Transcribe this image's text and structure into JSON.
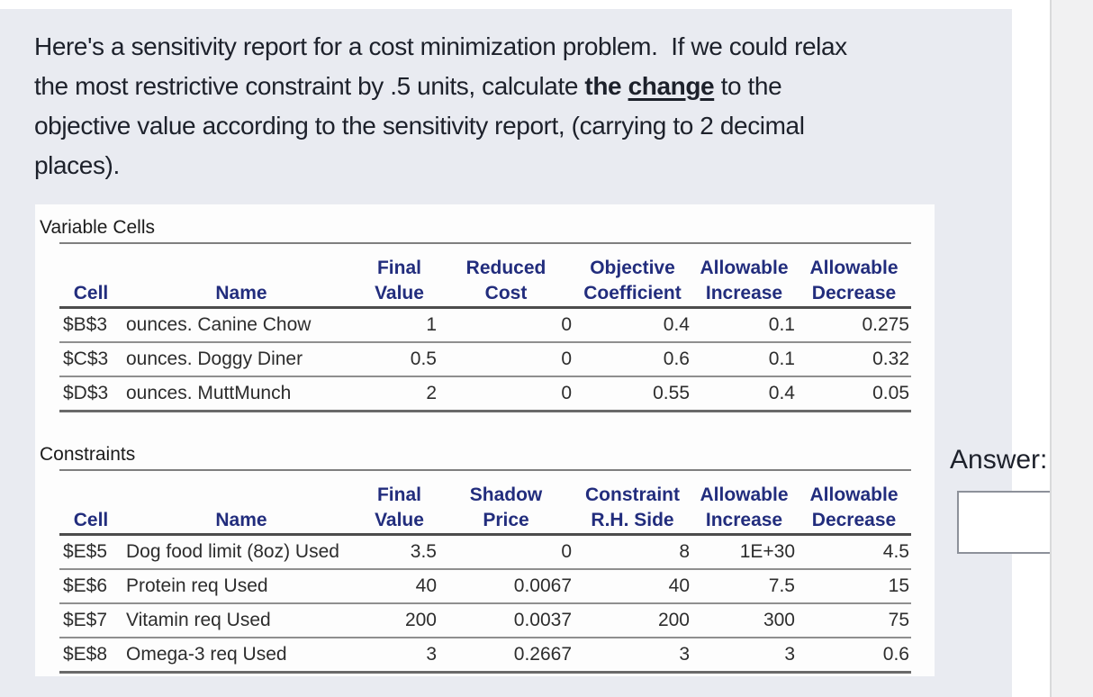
{
  "colors": {
    "panel": "#e9ebf1",
    "card": "#fdfdfd",
    "gutter": "#f1f1f2",
    "gutterline": "#d9dadb",
    "navy": "#222d7d",
    "ink": "#1d212b",
    "tableink": "#2d2d2d",
    "rule": "#7f7f7f",
    "ruledark": "#4c4c4c",
    "rulerow": "#8f8f8f",
    "rulebottom": "#6a6a6a",
    "inputborder": "#8d919a"
  },
  "question": {
    "lines": [
      {
        "segments": [
          {
            "t": "Here's a sensitivity report for a cost minimization problem.  If we could relax"
          }
        ]
      },
      {
        "segments": [
          {
            "t": "the most restrictive constraint by .5 units, calculate "
          },
          {
            "t": "the ",
            "b": true
          },
          {
            "t": "change",
            "b": true,
            "u": true
          },
          {
            "t": " to the"
          }
        ]
      },
      {
        "segments": [
          {
            "t": "objective value according to the sensitivity report, (carrying to 2 decimal"
          }
        ]
      },
      {
        "segments": [
          {
            "t": "places)."
          }
        ]
      }
    ]
  },
  "report": {
    "variable_cells": {
      "section_label": "Variable Cells",
      "col_groups": [
        "",
        "",
        "Final",
        "Reduced",
        "Objective",
        "Allowable",
        "Allowable"
      ],
      "col_headers": [
        "Cell",
        "Name",
        "Value",
        "Cost",
        "Coefficient",
        "Increase",
        "Decrease"
      ],
      "rows": [
        [
          "$B$3",
          "ounces. Canine Chow",
          "1",
          "0",
          "0.4",
          "0.1",
          "0.275"
        ],
        [
          "$C$3",
          "ounces. Doggy Diner",
          "0.5",
          "0",
          "0.6",
          "0.1",
          "0.32"
        ],
        [
          "$D$3",
          "ounces. MuttMunch",
          "2",
          "0",
          "0.55",
          "0.4",
          "0.05"
        ]
      ]
    },
    "constraints": {
      "section_label": "Constraints",
      "col_groups": [
        "",
        "",
        "Final",
        "Shadow",
        "Constraint",
        "Allowable",
        "Allowable"
      ],
      "col_headers": [
        "Cell",
        "Name",
        "Value",
        "Price",
        "R.H. Side",
        "Increase",
        "Decrease"
      ],
      "rows": [
        [
          "$E$5",
          "Dog food limit (8oz) Used",
          "3.5",
          "0",
          "8",
          "1E+30",
          "4.5"
        ],
        [
          "$E$6",
          "Protein req Used",
          "40",
          "0.0067",
          "40",
          "7.5",
          "15"
        ],
        [
          "$E$7",
          "Vitamin req Used",
          "200",
          "0.0037",
          "200",
          "300",
          "75"
        ],
        [
          "$E$8",
          "Omega-3 req Used",
          "3",
          "0.2667",
          "3",
          "3",
          "0.6"
        ]
      ]
    }
  },
  "answer": {
    "label": "Answer:",
    "value": ""
  }
}
